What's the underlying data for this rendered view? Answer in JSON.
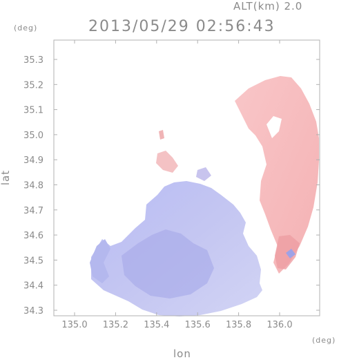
{
  "header": {
    "altitude_text": "ALT(km) 2.0",
    "timestamp": "2013/05/29 02:56:43"
  },
  "axes": {
    "y_unit": "(deg)",
    "x_unit": "(deg)",
    "x_label": "lon",
    "y_label": "lat",
    "x_ticks": [
      "135.0",
      "135.2",
      "135.4",
      "135.6",
      "135.8",
      "136.0"
    ],
    "y_ticks": [
      "35.3",
      "35.2",
      "35.1",
      "35.0",
      "34.9",
      "34.8",
      "34.7",
      "34.6",
      "34.5",
      "34.4",
      "34.3"
    ]
  },
  "colors": {
    "text": "#8a8a8a",
    "frame": "#b0b0b0",
    "approaching": "#aeb2f0",
    "receding": "#f6b8ba"
  }
}
